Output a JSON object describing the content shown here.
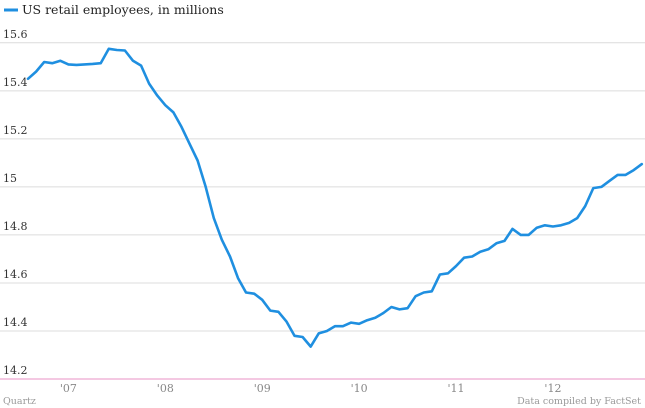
{
  "chart_data": {
    "type": "line",
    "series": [
      {
        "name": "US retail employees, in millions",
        "color": "#1f8fe0",
        "x": [
          2006.583,
          2006.667,
          2006.75,
          2006.833,
          2006.917,
          2007.0,
          2007.083,
          2007.167,
          2007.25,
          2007.333,
          2007.417,
          2007.5,
          2007.583,
          2007.667,
          2007.75,
          2007.833,
          2007.917,
          2008.0,
          2008.083,
          2008.167,
          2008.25,
          2008.333,
          2008.417,
          2008.5,
          2008.583,
          2008.667,
          2008.75,
          2008.833,
          2008.917,
          2009.0,
          2009.083,
          2009.167,
          2009.25,
          2009.333,
          2009.417,
          2009.5,
          2009.583,
          2009.667,
          2009.75,
          2009.833,
          2009.917,
          2010.0,
          2010.083,
          2010.167,
          2010.25,
          2010.333,
          2010.417,
          2010.5,
          2010.583,
          2010.667,
          2010.75,
          2010.833,
          2010.917,
          2011.0,
          2011.083,
          2011.167,
          2011.25,
          2011.333,
          2011.417,
          2011.5,
          2011.583,
          2011.667,
          2011.75,
          2011.833,
          2011.917,
          2012.0,
          2012.083,
          2012.167,
          2012.25,
          2012.333,
          2012.417,
          2012.5,
          2012.583,
          2012.667,
          2012.75,
          2012.833,
          2012.917
        ],
        "values": [
          15.45,
          15.48,
          15.52,
          15.515,
          15.525,
          15.51,
          15.508,
          15.51,
          15.512,
          15.515,
          15.575,
          15.57,
          15.568,
          15.525,
          15.505,
          15.43,
          15.38,
          15.34,
          15.31,
          15.25,
          15.18,
          15.11,
          15.0,
          14.87,
          14.78,
          14.71,
          14.62,
          14.56,
          14.555,
          14.53,
          14.485,
          14.48,
          14.44,
          14.38,
          14.375,
          14.335,
          14.39,
          14.4,
          14.42,
          14.42,
          14.435,
          14.43,
          14.445,
          14.455,
          14.475,
          14.5,
          14.49,
          14.495,
          14.545,
          14.56,
          14.565,
          14.635,
          14.64,
          14.67,
          14.705,
          14.71,
          14.73,
          14.74,
          14.765,
          14.775,
          14.825,
          14.8,
          14.8,
          14.83,
          14.84,
          14.835,
          14.84,
          14.85,
          14.87,
          14.92,
          14.995,
          15.0,
          15.025,
          15.05,
          15.05,
          15.07,
          15.095
        ]
      }
    ],
    "ylim": [
      14.2,
      15.62
    ],
    "yticks": [
      14.2,
      14.4,
      14.6,
      14.8,
      15,
      15.2,
      15.4,
      15.6
    ],
    "ytick_labels": [
      "14.2",
      "14.4",
      "14.6",
      "14.8",
      "15",
      "15.2",
      "15.4",
      "15.6"
    ],
    "xlim": [
      2006.583,
      2012.95
    ],
    "xticks": [
      2007.0,
      2008.0,
      2009.0,
      2010.0,
      2011.0,
      2012.0
    ],
    "xtick_labels": [
      "'07",
      "'08",
      "'09",
      "'10",
      "'11",
      "'12"
    ],
    "grid": true,
    "legend": "top-left",
    "baseline_color": "#f0b5d8",
    "grid_color": "#dcdcdc"
  },
  "footer": {
    "source_left": "Quartz",
    "source_right": "Data compiled by FactSet"
  }
}
